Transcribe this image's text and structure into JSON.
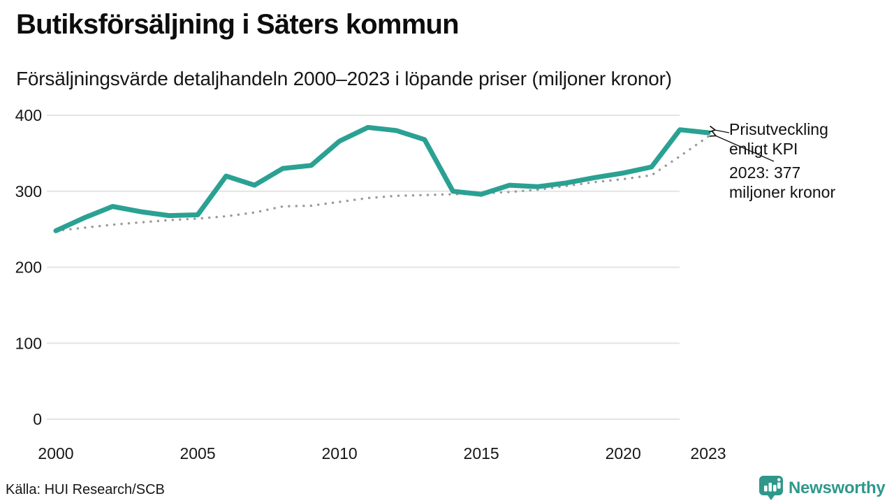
{
  "header": {
    "title": "Butiksförsäljning i Säters kommun",
    "subtitle": "Försäljningsvärde detaljhandeln 2000–2023 i löpande priser (miljoner kronor)"
  },
  "annotations": {
    "kpi_line1": "Prisutveckling",
    "kpi_line2": "enligt KPI",
    "value_line1": "2023: 377",
    "value_line2": "miljoner kronor"
  },
  "footer": {
    "source": "Källa: HUI Research/SCB",
    "brand": "Newsworthy"
  },
  "colors": {
    "accent": "#2aa192",
    "kpi_dotted": "#9a9a9a",
    "grid": "#e4e4e4",
    "text": "#161616",
    "brand": "#2f988b"
  },
  "chart_data": {
    "type": "line",
    "title": "Butiksförsäljning i Säters kommun",
    "subtitle": "Försäljningsvärde detaljhandeln 2000–2023 i löpande priser (miljoner kronor)",
    "unit": "miljoner kronor",
    "x": [
      2000,
      2001,
      2002,
      2003,
      2004,
      2005,
      2006,
      2007,
      2008,
      2009,
      2010,
      2011,
      2012,
      2013,
      2014,
      2015,
      2016,
      2017,
      2018,
      2019,
      2020,
      2021,
      2022,
      2023
    ],
    "series": [
      {
        "name": "Butiksförsäljning, löpande priser",
        "style": "solid",
        "color": "#2aa192",
        "values": [
          248,
          265,
          280,
          273,
          268,
          269,
          320,
          308,
          330,
          334,
          366,
          384,
          380,
          368,
          300,
          296,
          308,
          306,
          311,
          318,
          324,
          332,
          381,
          377
        ]
      },
      {
        "name": "Prisutveckling enligt KPI",
        "style": "dotted",
        "color": "#9a9a9a",
        "values": [
          248,
          252,
          256,
          259,
          262,
          264,
          267,
          272,
          280,
          281,
          286,
          291,
          294,
          295,
          296,
          297,
          299,
          302,
          307,
          312,
          316,
          321,
          346,
          372
        ]
      }
    ],
    "ylim": [
      0,
      400
    ],
    "yticks": [
      0,
      100,
      200,
      300,
      400
    ],
    "xticks": [
      2000,
      2005,
      2010,
      2015,
      2020,
      2023
    ],
    "grid": "horizontal",
    "legend": "none",
    "annotation_target_year": 2023,
    "annotation_value": 377
  }
}
